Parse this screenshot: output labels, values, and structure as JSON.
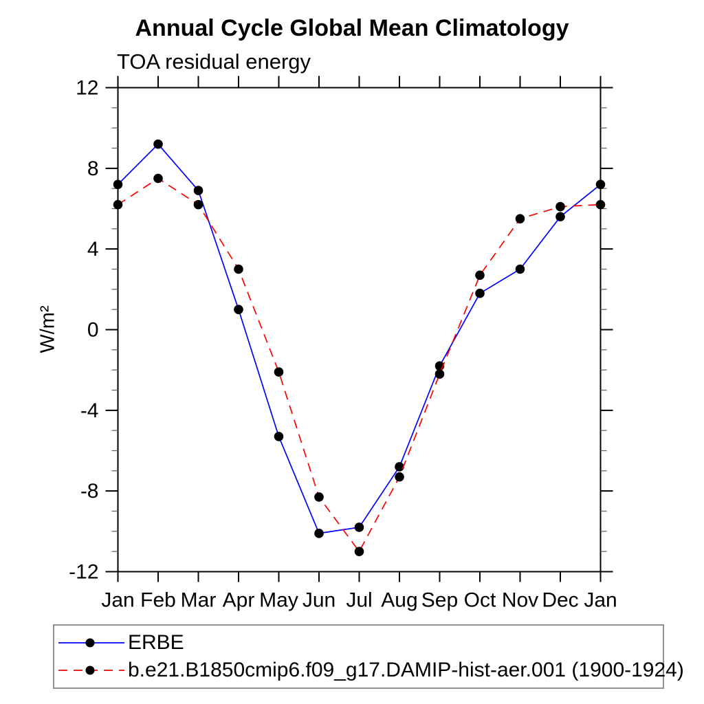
{
  "title": "Annual Cycle Global Mean Climatology",
  "subtitle": "TOA residual energy",
  "chart_data": {
    "type": "line",
    "x_categories": [
      "Jan",
      "Feb",
      "Mar",
      "Apr",
      "May",
      "Jun",
      "Jul",
      "Aug",
      "Sep",
      "Oct",
      "Nov",
      "Dec",
      "Jan"
    ],
    "xlabel": "",
    "ylabel": "W/m²",
    "ylim": [
      -12,
      12
    ],
    "yticks": [
      -12,
      -8,
      -4,
      0,
      4,
      8,
      12
    ],
    "y_minor_tick_interval": 1,
    "grid": false,
    "frame_style": "box-with-outward-ticks",
    "legend_position": "bottom-left-outside",
    "series": [
      {
        "name": "ERBE",
        "line_color": "#0000ff",
        "line_style": "solid",
        "marker": "filled-circle",
        "marker_color": "#000000",
        "values": [
          7.2,
          9.2,
          6.9,
          1.0,
          -5.3,
          -10.1,
          -9.8,
          -6.8,
          -1.8,
          1.8,
          3.0,
          5.6,
          7.2
        ]
      },
      {
        "name": "b.e21.B1850cmip6.f09_g17.DAMIP-hist-aer.001 (1900-1924)",
        "line_color": "#ff0000",
        "line_style": "dashed",
        "marker": "filled-circle",
        "marker_color": "#000000",
        "values": [
          6.2,
          7.5,
          6.2,
          3.0,
          -2.1,
          -8.3,
          -11.0,
          -7.3,
          -2.2,
          2.7,
          5.5,
          6.1,
          6.2
        ]
      }
    ]
  },
  "colors": {
    "axis": "#000000",
    "minor_tick": "#666666",
    "legend_border": "#909090",
    "background": "#ffffff"
  }
}
